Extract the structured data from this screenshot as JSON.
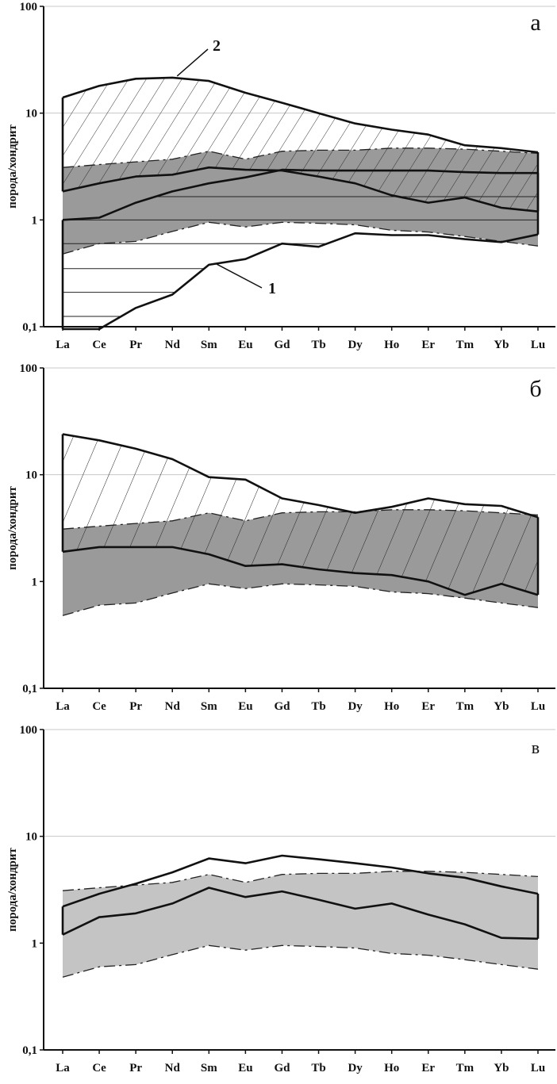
{
  "chart_data": [
    {
      "type": "line",
      "panel_label": "а",
      "ylabel": "порода/хондрит",
      "yscale": "log",
      "ylim": [
        0.1,
        100
      ],
      "y_tick_labels": [
        "0,1",
        "1",
        "10",
        "100"
      ],
      "categories": [
        "La",
        "Ce",
        "Pr",
        "Nd",
        "Sm",
        "Eu",
        "Gd",
        "Tb",
        "Dy",
        "Ho",
        "Er",
        "Tm",
        "Yb",
        "Lu"
      ],
      "reference_band": {
        "name": "gray field",
        "fill": "#9a9a9a",
        "upper": [
          3.1,
          3.3,
          3.5,
          3.7,
          4.4,
          3.7,
          4.4,
          4.5,
          4.5,
          4.7,
          4.7,
          4.6,
          4.4,
          4.2
        ],
        "lower": [
          0.48,
          0.6,
          0.63,
          0.78,
          0.95,
          0.86,
          0.95,
          0.93,
          0.9,
          0.8,
          0.77,
          0.7,
          0.63,
          0.57
        ]
      },
      "series": [
        {
          "name": "field 2 upper",
          "hatch": "diagonal",
          "values": [
            14,
            18,
            21,
            21.5,
            20,
            15.5,
            12.5,
            10,
            8,
            7,
            6.3,
            5,
            4.7,
            4.3
          ]
        },
        {
          "name": "field 2 lower",
          "values": [
            1.85,
            2.2,
            2.55,
            2.65,
            3.1,
            2.95,
            2.9,
            2.55,
            2.2,
            1.7,
            1.45,
            1.62,
            1.3,
            1.2
          ]
        },
        {
          "name": "field 1 upper",
          "hatch": "horizontal",
          "values": [
            1.0,
            1.05,
            1.45,
            1.85,
            2.2,
            2.5,
            2.95,
            2.9,
            2.9,
            2.9,
            2.9,
            2.8,
            2.75,
            2.75
          ]
        },
        {
          "name": "field 1 lower",
          "values": [
            0.09,
            0.09,
            0.15,
            0.2,
            0.38,
            0.43,
            0.6,
            0.56,
            0.75,
            0.72,
            0.72,
            0.66,
            0.62,
            0.73
          ]
        }
      ],
      "annotations": [
        "1",
        "2"
      ]
    },
    {
      "type": "line",
      "panel_label": "б",
      "ylabel": "порода/хондрит",
      "yscale": "log",
      "ylim": [
        0.1,
        100
      ],
      "y_tick_labels": [
        "0,1",
        "1",
        "10",
        "100"
      ],
      "categories": [
        "La",
        "Ce",
        "Pr",
        "Nd",
        "Sm",
        "Eu",
        "Gd",
        "Tb",
        "Dy",
        "Ho",
        "Er",
        "Tm",
        "Yb",
        "Lu"
      ],
      "reference_band": {
        "name": "gray field",
        "fill": "#9a9a9a",
        "upper": [
          3.1,
          3.3,
          3.5,
          3.7,
          4.4,
          3.7,
          4.4,
          4.5,
          4.5,
          4.7,
          4.7,
          4.6,
          4.4,
          4.2
        ],
        "lower": [
          0.48,
          0.6,
          0.63,
          0.78,
          0.95,
          0.86,
          0.95,
          0.93,
          0.9,
          0.8,
          0.77,
          0.7,
          0.63,
          0.57
        ]
      },
      "series": [
        {
          "name": "hatched field upper",
          "hatch": "diagonal",
          "values": [
            24,
            21,
            17.5,
            14,
            9.5,
            9,
            6,
            5.2,
            4.4,
            5,
            6,
            5.3,
            5.1,
            4
          ]
        },
        {
          "name": "hatched field lower",
          "values": [
            1.9,
            2.1,
            2.1,
            2.1,
            1.8,
            1.4,
            1.45,
            1.3,
            1.2,
            1.15,
            1,
            0.75,
            0.95,
            0.75
          ]
        }
      ]
    },
    {
      "type": "line",
      "panel_label": "в",
      "ylabel": "порода/хондрит",
      "yscale": "log",
      "ylim": [
        0.1,
        100
      ],
      "y_tick_labels": [
        "0,1",
        "1",
        "10",
        "100"
      ],
      "categories": [
        "La",
        "Ce",
        "Pr",
        "Nd",
        "Sm",
        "Eu",
        "Gd",
        "Tb",
        "Dy",
        "Ho",
        "Er",
        "Tm",
        "Yb",
        "Lu"
      ],
      "reference_band": {
        "name": "gray field",
        "fill": "#c4c4c4",
        "upper": [
          3.1,
          3.3,
          3.5,
          3.7,
          4.4,
          3.7,
          4.4,
          4.5,
          4.5,
          4.7,
          4.7,
          4.6,
          4.4,
          4.2
        ],
        "lower": [
          0.48,
          0.6,
          0.63,
          0.78,
          0.95,
          0.86,
          0.95,
          0.93,
          0.9,
          0.8,
          0.77,
          0.7,
          0.63,
          0.57
        ]
      },
      "series": [
        {
          "name": "field upper",
          "values": [
            2.2,
            2.9,
            3.6,
            4.6,
            6.2,
            5.6,
            6.6,
            6.1,
            5.6,
            5.1,
            4.5,
            4.1,
            3.4,
            2.9
          ]
        },
        {
          "name": "field lower",
          "values": [
            1.2,
            1.75,
            1.9,
            2.35,
            3.3,
            2.7,
            3.05,
            2.55,
            2.1,
            2.35,
            1.85,
            1.5,
            1.12,
            1.1
          ]
        }
      ]
    }
  ]
}
